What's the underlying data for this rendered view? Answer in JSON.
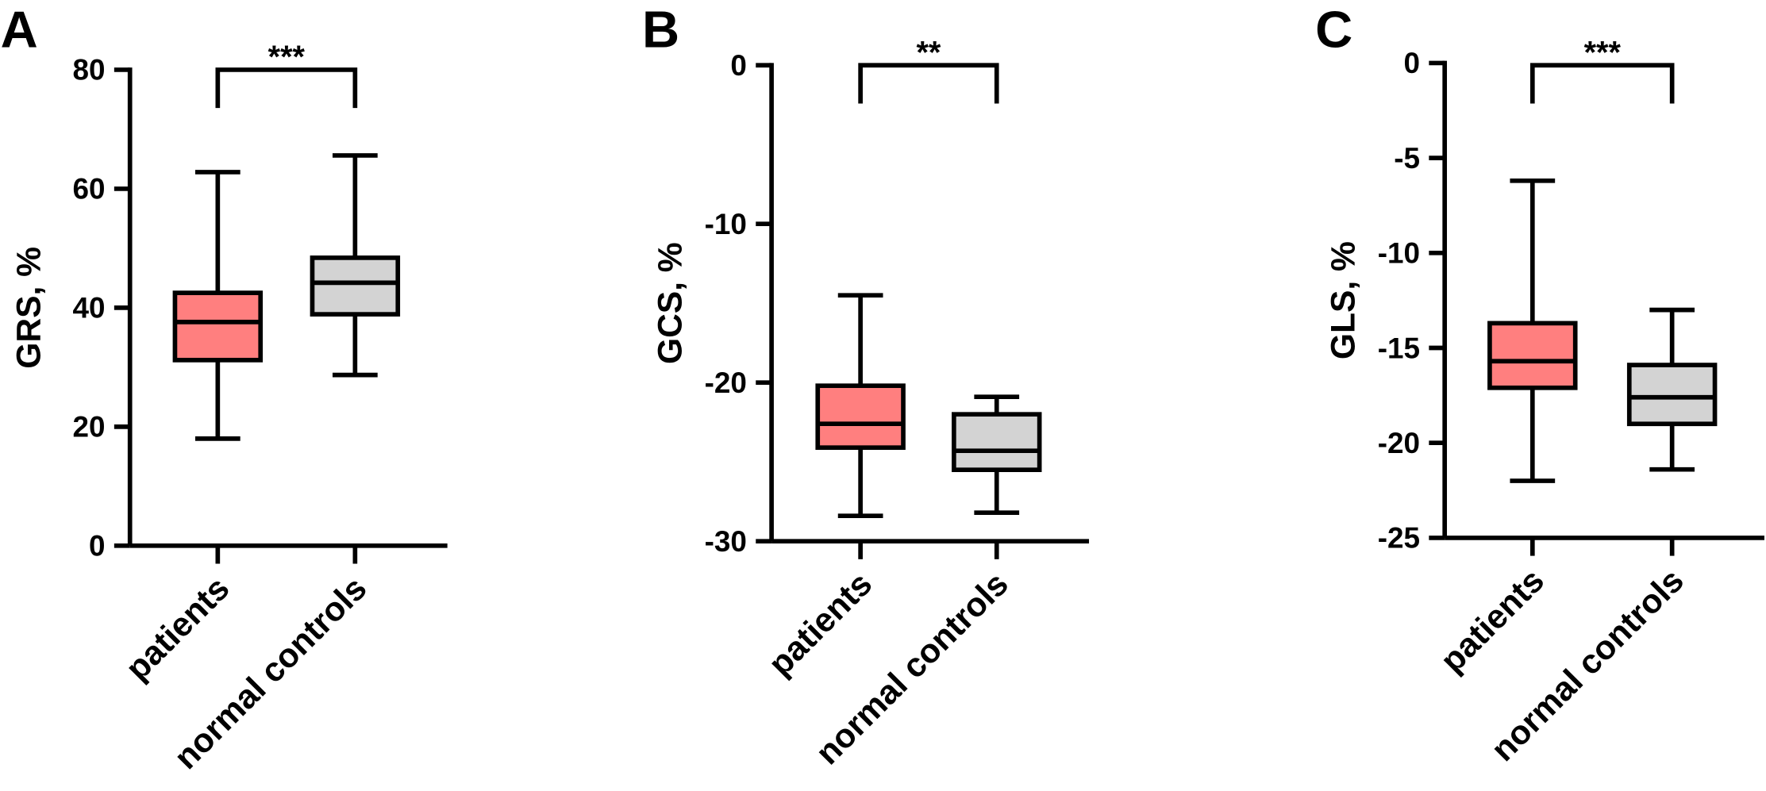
{
  "chart_data": [
    {
      "type": "box",
      "panel_label": "A",
      "y_label": "GRS, %",
      "annotation": "***",
      "categories": [
        "patients",
        "normal controls"
      ],
      "colors": [
        "#ff7f7f",
        "#d3d3d3"
      ],
      "boxes": [
        {
          "min": 18,
          "q1": 31.2,
          "median": 37.6,
          "q3": 42.5,
          "max": 62.8
        },
        {
          "min": 28.7,
          "q1": 38.9,
          "median": 44.2,
          "q3": 48.4,
          "max": 65.6
        }
      ],
      "ylim": [
        0,
        80
      ],
      "yticks": [
        0,
        20,
        40,
        60,
        80
      ]
    },
    {
      "type": "box",
      "panel_label": "B",
      "y_label": "GCS, %",
      "annotation": "**",
      "categories": [
        "patients",
        "normal controls"
      ],
      "colors": [
        "#ff7f7f",
        "#d3d3d3"
      ],
      "boxes": [
        {
          "min": -28.4,
          "q1": -24.1,
          "median": -22.6,
          "q3": -20.2,
          "max": -14.5
        },
        {
          "min": -28.2,
          "q1": -25.5,
          "median": -24.3,
          "q3": -22.0,
          "max": -20.9
        }
      ],
      "ylim": [
        -30,
        0
      ],
      "yticks": [
        -30,
        -20,
        -10,
        0
      ]
    },
    {
      "type": "box",
      "panel_label": "C",
      "y_label": "GLS, %",
      "annotation": "***",
      "categories": [
        "patients",
        "normal controls"
      ],
      "colors": [
        "#ff7f7f",
        "#d3d3d3"
      ],
      "boxes": [
        {
          "min": -22.0,
          "q1": -17.1,
          "median": -15.7,
          "q3": -13.7,
          "max": -6.2
        },
        {
          "min": -21.4,
          "q1": -19.0,
          "median": -17.6,
          "q3": -15.9,
          "max": -13.0
        }
      ],
      "ylim": [
        -25,
        0
      ],
      "yticks": [
        -25,
        -20,
        -15,
        -10,
        -5,
        0
      ]
    }
  ]
}
